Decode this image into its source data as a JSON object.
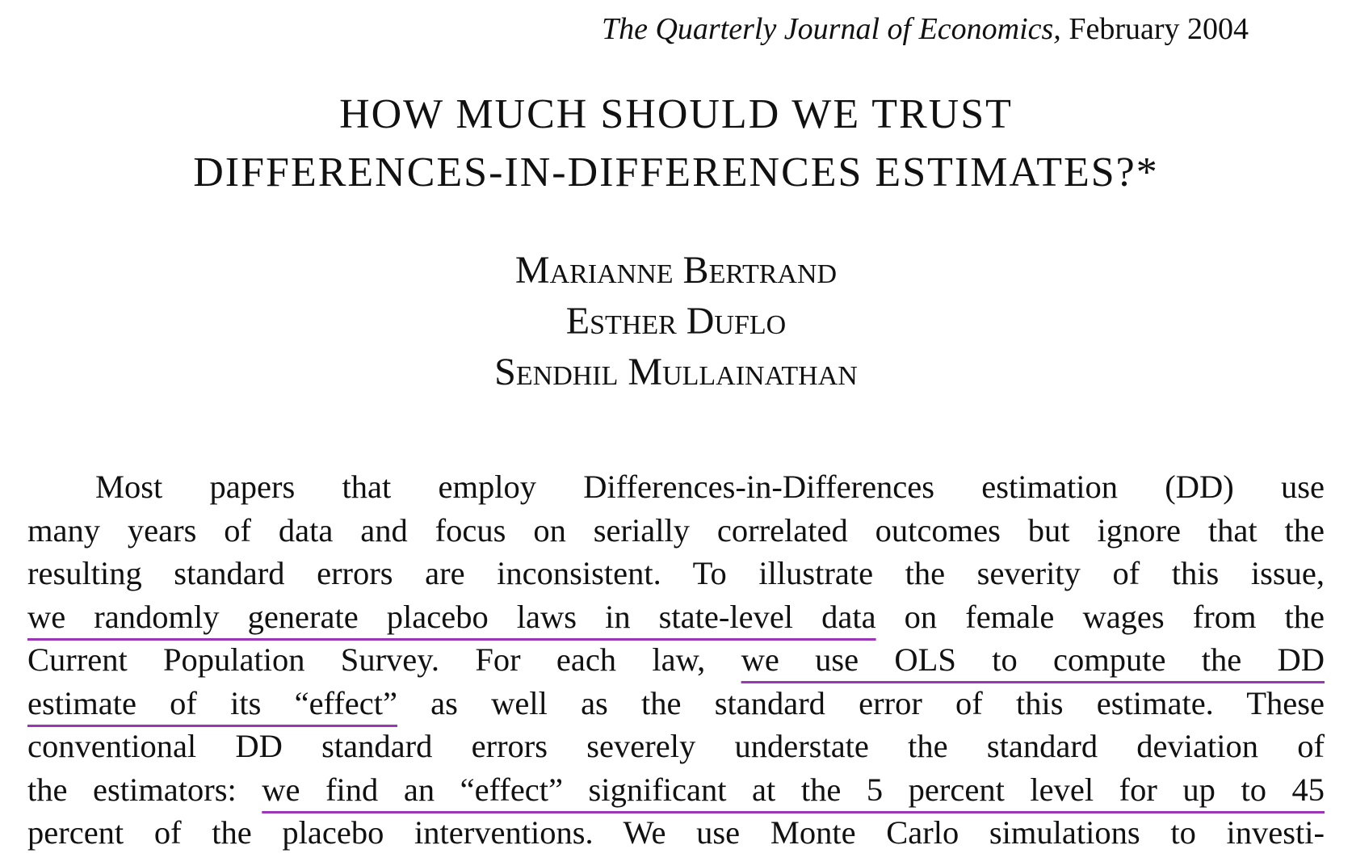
{
  "header": {
    "journal_name": "The Quarterly Journal of Economics,",
    "issue_date": "February 2004"
  },
  "paper": {
    "title_lines": [
      "HOW MUCH SHOULD WE TRUST",
      "DIFFERENCES-IN-DIFFERENCES ESTIMATES?*"
    ],
    "authors": [
      "Marianne Bertrand",
      "Esther Duflo",
      "Sendhil Mullainathan"
    ]
  },
  "abstract": {
    "lines": [
      {
        "segments": [
          {
            "text": "Most papers that employ Differences-in-Differences estimation (DD) use",
            "hl": false
          }
        ]
      },
      {
        "segments": [
          {
            "text": "many years of data and focus on serially correlated outcomes but ignore that the",
            "hl": false
          }
        ]
      },
      {
        "segments": [
          {
            "text": "resulting standard errors are inconsistent. To illustrate the severity of this issue,",
            "hl": false
          }
        ]
      },
      {
        "segments": [
          {
            "text": "we randomly generate placebo laws in state-level data",
            "hl": true
          },
          {
            "text": " on female wages from the",
            "hl": false
          }
        ]
      },
      {
        "segments": [
          {
            "text": "Current Population Survey. For each law, ",
            "hl": false
          },
          {
            "text": "we use OLS to compute the DD",
            "hl": true
          }
        ]
      },
      {
        "segments": [
          {
            "text": "estimate of its “effect”",
            "hl": true
          },
          {
            "text": " as well as the standard error of this estimate. These",
            "hl": false
          }
        ]
      },
      {
        "segments": [
          {
            "text": "conventional DD standard errors severely understate the standard deviation of",
            "hl": false
          }
        ]
      },
      {
        "segments": [
          {
            "text": "the estimators: ",
            "hl": false
          },
          {
            "text": "we find an “effect” significant at the 5 percent level for up to 45",
            "hl": true
          }
        ]
      },
      {
        "segments": [
          {
            "text": "percent of the placebo interventions. We use Monte Carlo simulations to investi-",
            "hl": false
          }
        ]
      }
    ]
  },
  "colors": {
    "highlight_underline": "#9b36b7",
    "text": "#111111",
    "background": "#ffffff"
  }
}
